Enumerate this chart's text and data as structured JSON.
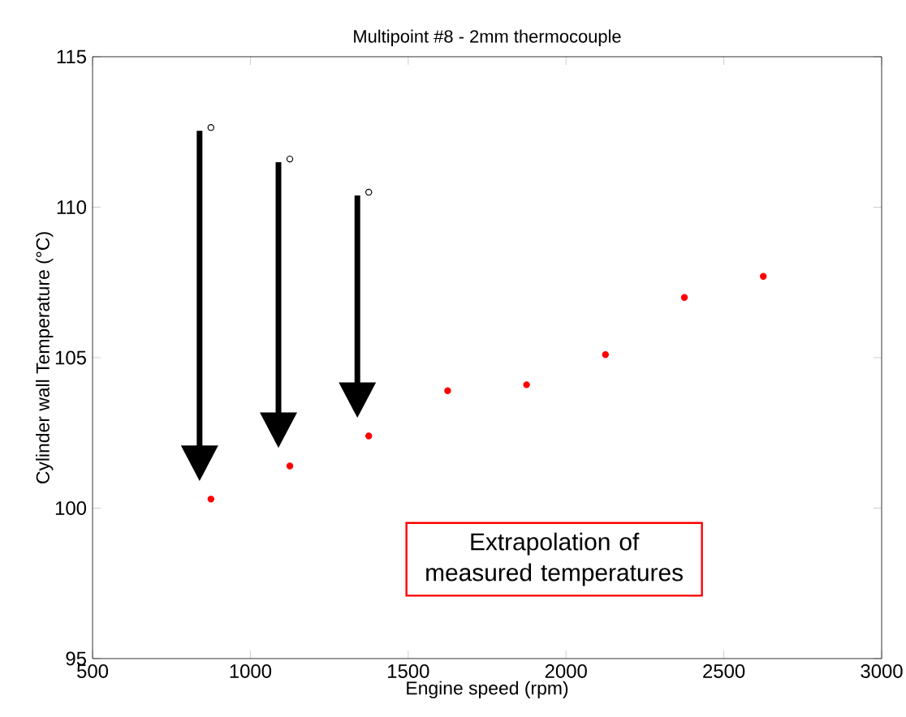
{
  "chart_data": {
    "type": "scatter",
    "title": "Multipoint #8 - 2mm thermocouple",
    "xlabel": "Engine speed (rpm)",
    "ylabel": "Cylinder wall Temperature (°C)",
    "series": [
      {
        "color": "#000000",
        "x": [
          875,
          1125,
          1375
        ],
        "values": [
          112.65,
          111.6,
          110.5
        ]
      },
      {
        "color": "#ff0000",
        "x": [
          875,
          1125,
          1375,
          1625,
          1875,
          2125,
          2375,
          2625
        ],
        "values": [
          100.3,
          101.4,
          102.4,
          103.9,
          104.1,
          105.1,
          107.0,
          107.7
        ]
      }
    ],
    "xlim": [
      500,
      3000
    ],
    "ylim": [
      95,
      115
    ],
    "xticks": [
      500,
      1000,
      1500,
      2000,
      2500,
      3000
    ],
    "yticks": [
      95,
      100,
      105,
      110,
      115
    ],
    "grid": false,
    "marker": "circle",
    "annotations": [
      "Extrapolation of\nmeasured temperatures"
    ]
  }
}
